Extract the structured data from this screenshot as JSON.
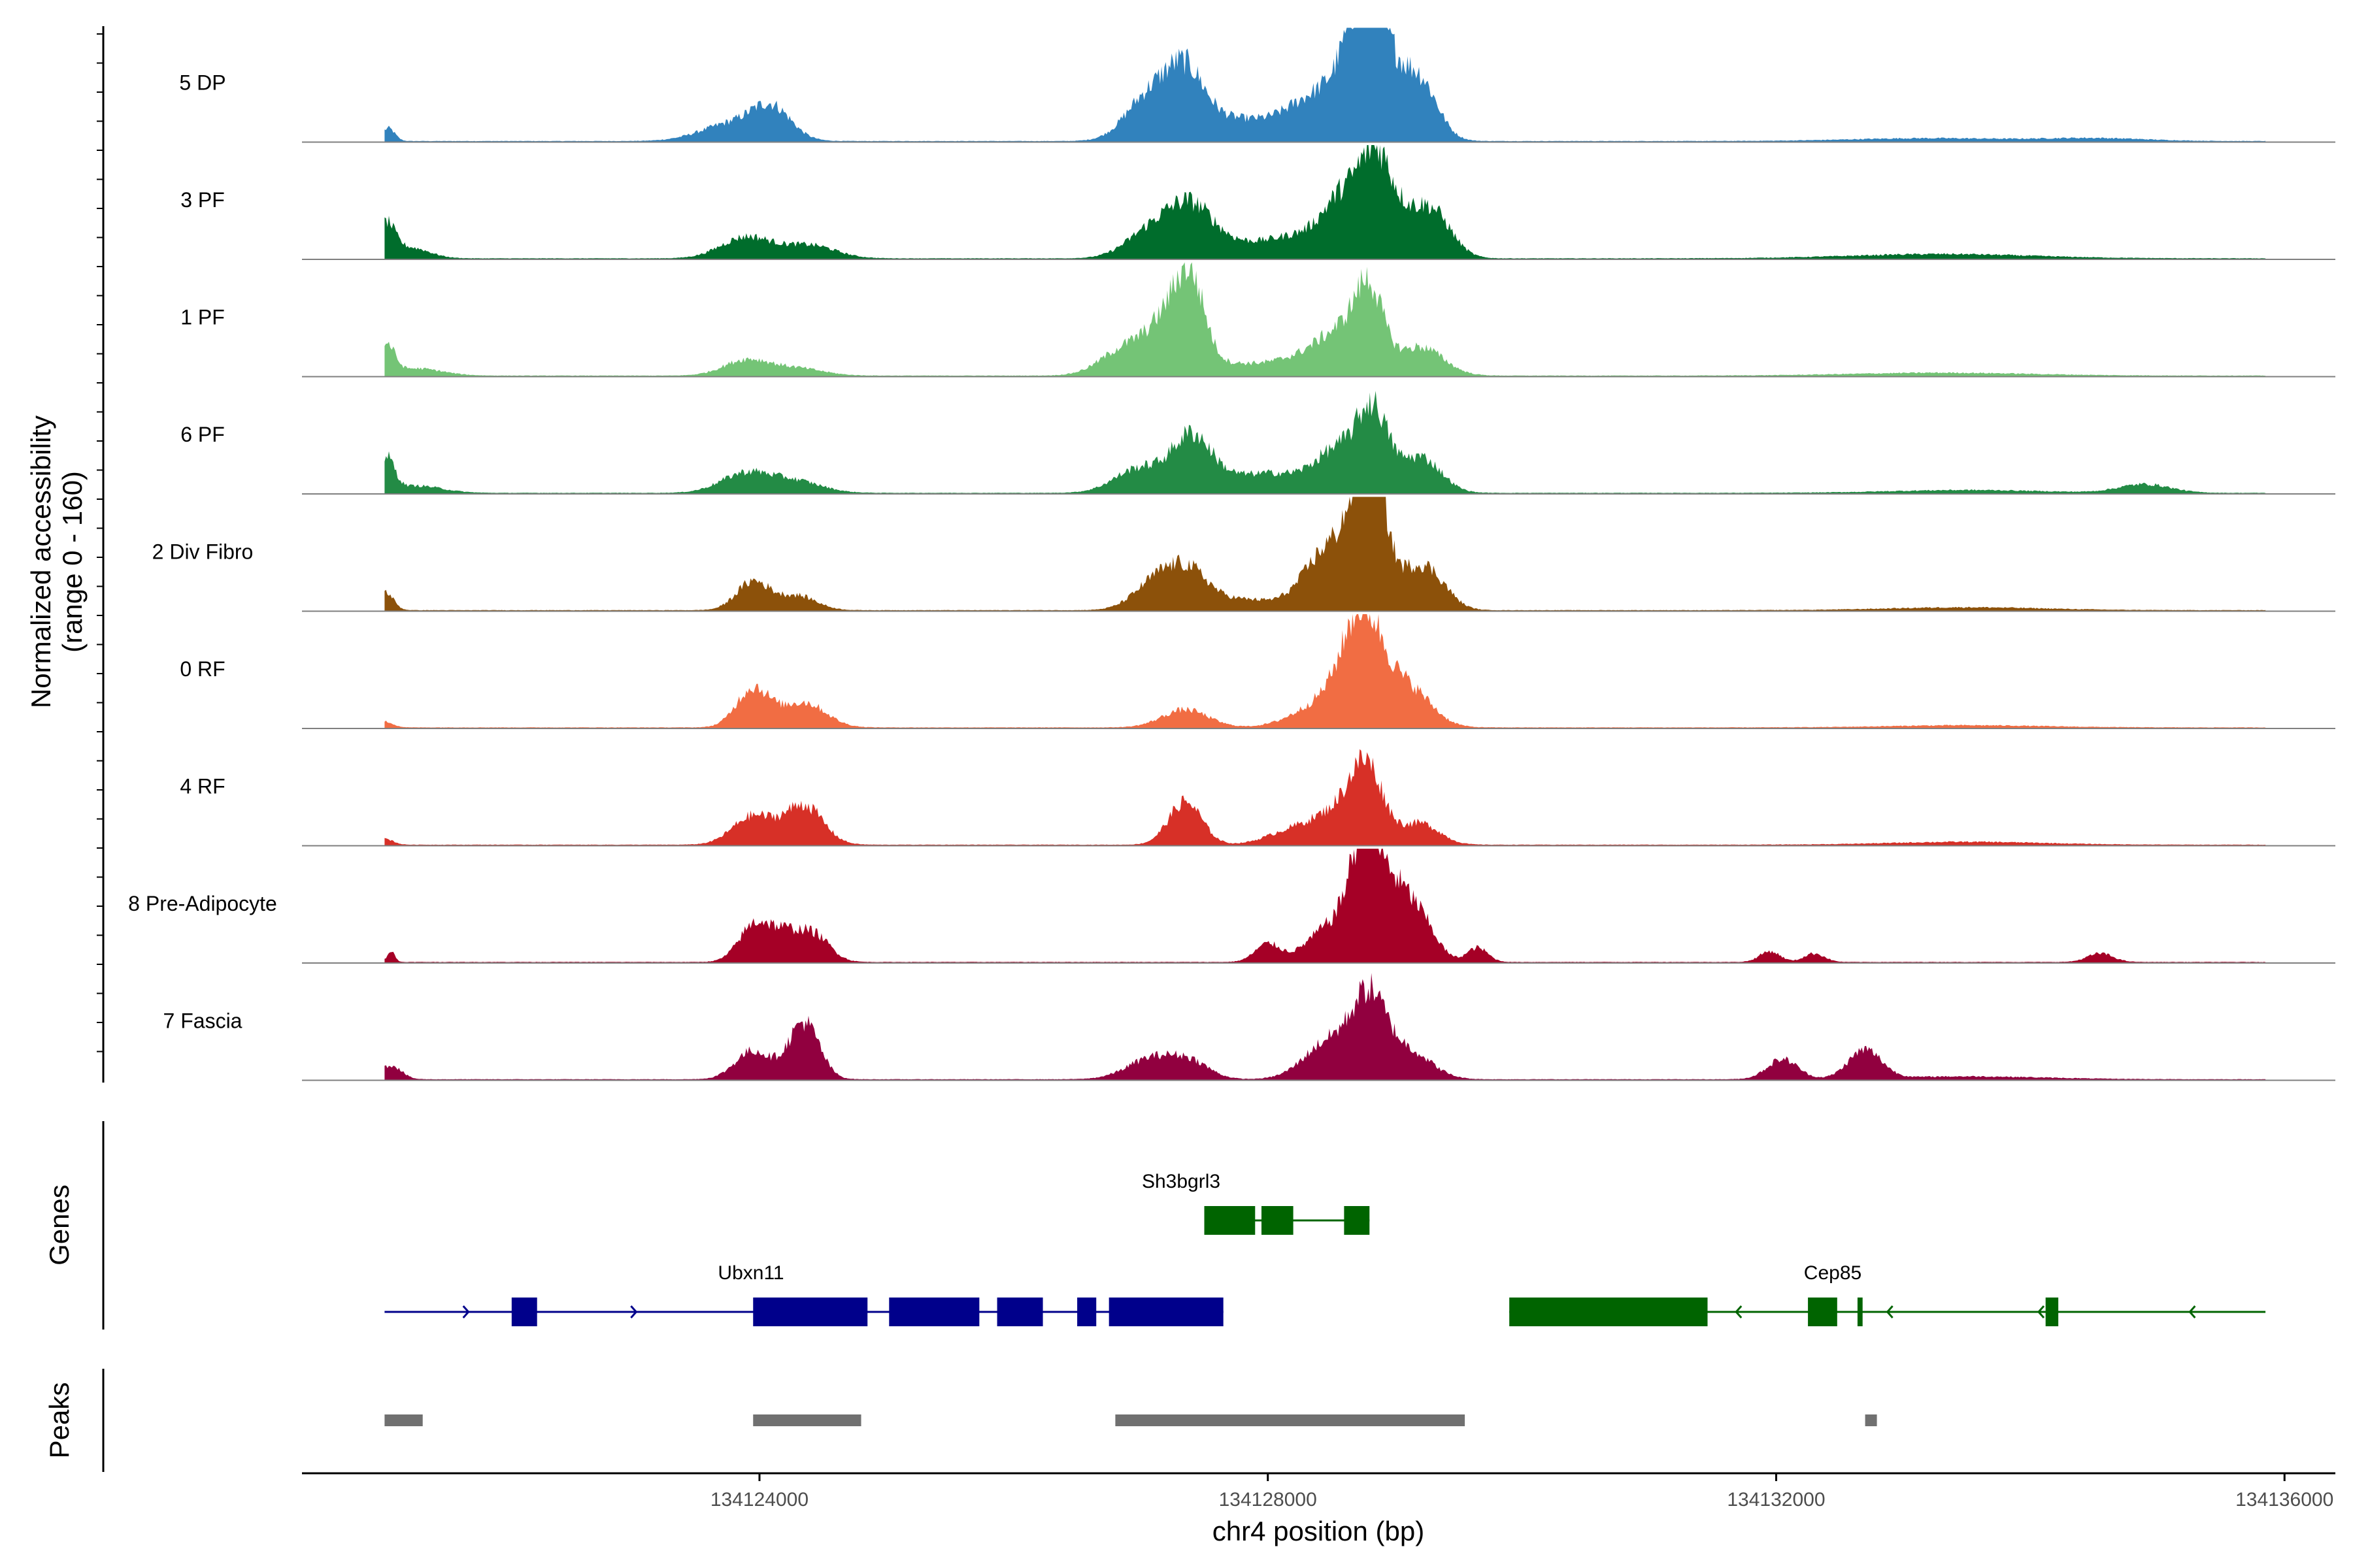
{
  "chart_data": {
    "type": "area",
    "title": "",
    "xlabel": "chr4 position (bp)",
    "ylabel_line1": "Normalized accessibility",
    "ylabel_line2": "(range 0 - 160)",
    "ylim": [
      0,
      160
    ],
    "xlim": [
      134120400,
      134136400
    ],
    "x_ticks": [
      134124000,
      134128000,
      134132000,
      134136000
    ],
    "x_tick_labels": [
      "134124000",
      "134128000",
      "134132000",
      "134136000"
    ],
    "region_start": 134121050,
    "region_end": 134135850,
    "tracks": [
      {
        "name": "5 DP",
        "color": "#3182bd",
        "peaks": [
          [
            134121080,
            18,
            50
          ],
          [
            134123800,
            25,
            250
          ],
          [
            134124100,
            40,
            150
          ],
          [
            134127060,
            60,
            180
          ],
          [
            134127350,
            80,
            150
          ],
          [
            134127700,
            30,
            300
          ],
          [
            134128400,
            60,
            250
          ],
          [
            134128780,
            130,
            140
          ],
          [
            134128850,
            80,
            220
          ],
          [
            134129200,
            70,
            140
          ],
          [
            134133200,
            4,
            600
          ],
          [
            134134500,
            4,
            400
          ]
        ]
      },
      {
        "name": "3 PF",
        "color": "#006d2c",
        "peaks": [
          [
            134121060,
            45,
            70
          ],
          [
            134121250,
            15,
            150
          ],
          [
            134123900,
            30,
            200
          ],
          [
            134124400,
            18,
            200
          ],
          [
            134127100,
            40,
            200
          ],
          [
            134127400,
            55,
            170
          ],
          [
            134127700,
            20,
            300
          ],
          [
            134128300,
            30,
            250
          ],
          [
            134128600,
            70,
            150
          ],
          [
            134128850,
            100,
            120
          ],
          [
            134129000,
            50,
            200
          ],
          [
            134129300,
            55,
            150
          ],
          [
            134133300,
            6,
            700
          ]
        ]
      },
      {
        "name": "1 PF",
        "color": "#74c476",
        "peaks": [
          [
            134121070,
            40,
            60
          ],
          [
            134121300,
            10,
            200
          ],
          [
            134123900,
            22,
            180
          ],
          [
            134124300,
            10,
            200
          ],
          [
            134126900,
            40,
            200
          ],
          [
            134127250,
            75,
            160
          ],
          [
            134127400,
            90,
            110
          ],
          [
            134127700,
            15,
            250
          ],
          [
            134128300,
            25,
            250
          ],
          [
            134128600,
            50,
            180
          ],
          [
            134128800,
            100,
            110
          ],
          [
            134129200,
            40,
            180
          ],
          [
            134133300,
            4,
            700
          ]
        ]
      },
      {
        "name": "6 PF",
        "color": "#238b45",
        "peaks": [
          [
            134121070,
            45,
            60
          ],
          [
            134121300,
            10,
            200
          ],
          [
            134123900,
            28,
            200
          ],
          [
            134124300,
            15,
            200
          ],
          [
            134127000,
            35,
            200
          ],
          [
            134127400,
            70,
            150
          ],
          [
            134127700,
            20,
            250
          ],
          [
            134128100,
            20,
            200
          ],
          [
            134128550,
            60,
            180
          ],
          [
            134128830,
            105,
            120
          ],
          [
            134129200,
            50,
            160
          ],
          [
            134134900,
            12,
            200
          ],
          [
            134133500,
            4,
            600
          ]
        ]
      },
      {
        "name": "2 Div Fibro",
        "color": "#8c510a",
        "peaks": [
          [
            134121060,
            25,
            60
          ],
          [
            134123950,
            40,
            130
          ],
          [
            134124300,
            20,
            150
          ],
          [
            134127150,
            45,
            180
          ],
          [
            134127400,
            40,
            150
          ],
          [
            134127800,
            15,
            250
          ],
          [
            134128500,
            90,
            200
          ],
          [
            134128750,
            130,
            110
          ],
          [
            134128850,
            110,
            90
          ],
          [
            134129100,
            45,
            160
          ],
          [
            134129300,
            35,
            140
          ],
          [
            134133500,
            4,
            600
          ]
        ]
      },
      {
        "name": "0 RF",
        "color": "#f16d43",
        "peaks": [
          [
            134121060,
            8,
            60
          ],
          [
            134123950,
            55,
            130
          ],
          [
            134124350,
            35,
            170
          ],
          [
            134127350,
            25,
            180
          ],
          [
            134128500,
            40,
            250
          ],
          [
            134128750,
            140,
            150
          ],
          [
            134129100,
            55,
            180
          ],
          [
            134133500,
            3,
            600
          ]
        ]
      },
      {
        "name": "4 RF",
        "color": "#d73027",
        "peaks": [
          [
            134121060,
            8,
            60
          ],
          [
            134123950,
            40,
            160
          ],
          [
            134124350,
            55,
            150
          ],
          [
            134127350,
            60,
            130
          ],
          [
            134128200,
            20,
            200
          ],
          [
            134128550,
            40,
            180
          ],
          [
            134128780,
            100,
            130
          ],
          [
            134129200,
            30,
            150
          ],
          [
            134133500,
            4,
            600
          ]
        ]
      },
      {
        "name": "8 Pre-Adipocyte",
        "color": "#a50026",
        "peaks": [
          [
            134121100,
            15,
            30
          ],
          [
            134123950,
            45,
            120
          ],
          [
            134124200,
            40,
            150
          ],
          [
            134124450,
            30,
            120
          ],
          [
            134128000,
            25,
            100
          ],
          [
            134128500,
            50,
            180
          ],
          [
            134128750,
            130,
            110
          ],
          [
            134128950,
            100,
            150
          ],
          [
            134129200,
            50,
            130
          ],
          [
            134129650,
            20,
            80
          ],
          [
            134131950,
            15,
            80
          ],
          [
            134132300,
            12,
            80
          ],
          [
            134134550,
            12,
            100
          ]
        ]
      },
      {
        "name": "7 Fascia",
        "color": "#91003f",
        "peaks": [
          [
            134121100,
            20,
            80
          ],
          [
            134123950,
            40,
            140
          ],
          [
            134124350,
            80,
            120
          ],
          [
            134127100,
            30,
            200
          ],
          [
            134127400,
            20,
            150
          ],
          [
            134128500,
            55,
            200
          ],
          [
            134128800,
            100,
            130
          ],
          [
            134129100,
            40,
            180
          ],
          [
            134132050,
            28,
            120
          ],
          [
            134132700,
            40,
            130
          ],
          [
            134133500,
            4,
            600
          ]
        ]
      }
    ],
    "genes": [
      {
        "name": "Sh3bgrl3",
        "strand": "-",
        "color": "#006400",
        "start": 134127500,
        "end": 134128800,
        "exons": [
          [
            134127500,
            134127900
          ],
          [
            134127950,
            134128200
          ],
          [
            134128600,
            134128800
          ]
        ]
      },
      {
        "name": "Ubxn11",
        "strand": "+",
        "color": "#00008b",
        "start": 134121050,
        "end": 134127650,
        "exons": [
          [
            134122050,
            134122250
          ],
          [
            134123950,
            134124850
          ],
          [
            134125020,
            134125730
          ],
          [
            134125870,
            134126230
          ],
          [
            134126500,
            134126650
          ],
          [
            134126750,
            134127650
          ]
        ]
      },
      {
        "name": "Cep85",
        "strand": "-",
        "color": "#006400",
        "start": 134129900,
        "end": 134135850,
        "exons": [
          [
            134129900,
            134131460
          ],
          [
            134132250,
            134132480
          ],
          [
            134132640,
            134132680
          ],
          [
            134134120,
            134134220
          ]
        ]
      }
    ],
    "peak_regions": [
      [
        134121050,
        134121350
      ],
      [
        134123950,
        134124800
      ],
      [
        134126800,
        134129550
      ],
      [
        134132700,
        134132790
      ]
    ],
    "panel_labels": {
      "genes": "Genes",
      "peaks": "Peaks"
    },
    "colors": {
      "axis": "#000000",
      "baseline": "#7f7f7f",
      "peak_bar": "#707070",
      "tick_text": "#4d4d4d"
    }
  }
}
